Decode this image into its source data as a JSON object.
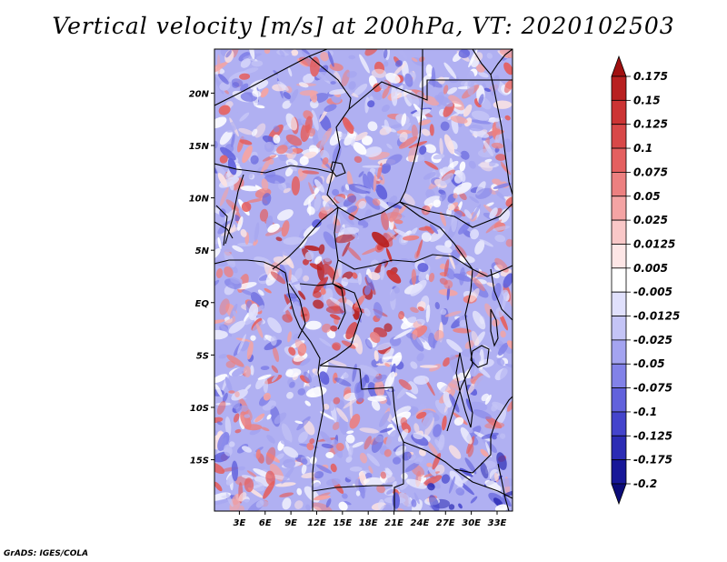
{
  "title": "Vertical velocity [m/s] at 200hPa, VT: 2020102503",
  "credit": "GrADS: IGES/COLA",
  "map": {
    "lat_labels": [
      "20N",
      "15N",
      "10N",
      "5N",
      "EQ",
      "5S",
      "10S",
      "15S"
    ],
    "lon_labels": [
      "3E",
      "6E",
      "9E",
      "12E",
      "15E",
      "18E",
      "21E",
      "24E",
      "27E",
      "30E",
      "33E"
    ],
    "lat_values": [
      20,
      15,
      10,
      5,
      0,
      -5,
      -10,
      -15
    ],
    "lon_values": [
      3,
      6,
      9,
      12,
      15,
      18,
      21,
      24,
      27,
      30,
      33
    ],
    "lat_range": [
      -19.9,
      24.2
    ],
    "lon_range": [
      0.1,
      34.8
    ]
  },
  "colorbar": {
    "levels": [
      "0.175",
      "0.15",
      "0.125",
      "0.1",
      "0.075",
      "0.05",
      "0.025",
      "0.0125",
      "0.005",
      "-0.005",
      "-0.0125",
      "-0.025",
      "-0.05",
      "-0.075",
      "-0.1",
      "-0.125",
      "-0.175",
      "-0.2"
    ],
    "colors": [
      "#a01010",
      "#b82020",
      "#cc3434",
      "#d84848",
      "#e46060",
      "#ec8080",
      "#f4a4a4",
      "#f9c8c8",
      "#fde6e6",
      "#ffffff",
      "#e0e0fc",
      "#c4c4f6",
      "#a4a4f0",
      "#8282e8",
      "#6262dc",
      "#4444cc",
      "#2c2cb4",
      "#181898",
      "#0c0c78"
    ]
  }
}
